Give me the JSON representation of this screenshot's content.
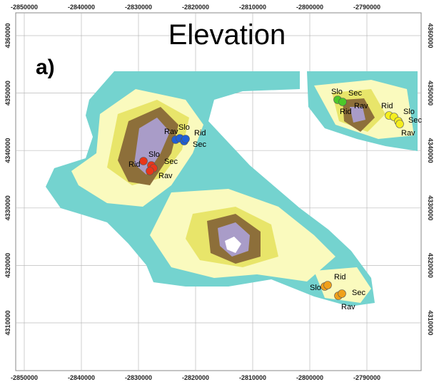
{
  "title": "Elevation",
  "panel_label": "a)",
  "x_ticks_top": [
    -2850000,
    -2840000,
    -2830000,
    -2820000,
    -2810000,
    -2800000,
    -2790000
  ],
  "x_ticks_bottom": [
    -2850000,
    -2840000,
    -2830000,
    -2820000,
    -2810000,
    -2800000,
    -2790000
  ],
  "y_ticks_left": [
    4360000,
    4350000,
    4340000,
    4330000,
    4320000,
    4310000
  ],
  "y_ticks_right": [
    4360000,
    4350000,
    4340000,
    4330000,
    4320000,
    4310000
  ],
  "sites": [
    {
      "color": "#1f5fd6",
      "labels": [
        "Rav",
        "Slo",
        "Rid",
        "Sec"
      ]
    },
    {
      "color": "#e8361a",
      "labels": [
        "Rid",
        "Slo",
        "Sec",
        "Rav"
      ]
    },
    {
      "color": "#4cc92a",
      "labels": [
        "Slo",
        "Sec",
        "Rid",
        "Rav"
      ]
    },
    {
      "color": "#f5ee1e",
      "labels": [
        "Rid",
        "Slo",
        "Sec",
        "Rav"
      ]
    },
    {
      "color": "#f0a01a",
      "labels": [
        "Rid",
        "Slo",
        "Sec",
        "Rav"
      ]
    }
  ]
}
